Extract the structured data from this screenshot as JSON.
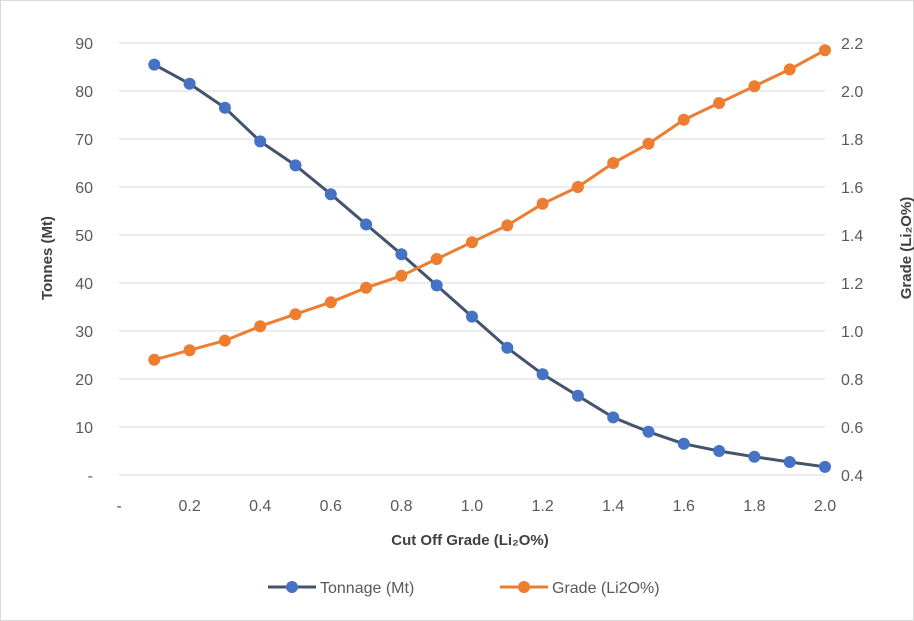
{
  "chart_data": {
    "type": "line",
    "xlabel": "Cut Off Grade (Li₂O%)",
    "ylabel_left": "Tonnes (Mt)",
    "ylabel_right": "Grade (Li₂O%)",
    "x_ticks": [
      "-",
      "0.2",
      "0.4",
      "0.6",
      "0.8",
      "1.0",
      "1.2",
      "1.4",
      "1.6",
      "1.8",
      "2.0"
    ],
    "y_left_ticks": [
      "-",
      "10",
      "20",
      "30",
      "40",
      "50",
      "60",
      "70",
      "80",
      "90"
    ],
    "y_right_ticks": [
      "0.4",
      "0.6",
      "0.8",
      "1.0",
      "1.2",
      "1.4",
      "1.6",
      "1.8",
      "2.0",
      "2.2"
    ],
    "xlim": [
      0,
      2.0
    ],
    "ylim_left": [
      0,
      90
    ],
    "ylim_right": [
      0.4,
      2.2
    ],
    "grid": "horizontal",
    "legend_position": "bottom",
    "x": [
      0.1,
      0.2,
      0.3,
      0.4,
      0.5,
      0.6,
      0.7,
      0.8,
      0.9,
      1.0,
      1.1,
      1.2,
      1.3,
      1.4,
      1.5,
      1.6,
      1.7,
      1.8,
      1.9,
      2.0
    ],
    "series": [
      {
        "name": "Tonnage (Mt)",
        "axis": "left",
        "color": "#44546a",
        "marker_color": "#4472c4",
        "values": [
          85.5,
          81.5,
          76.5,
          69.5,
          64.5,
          58.5,
          52.2,
          46.0,
          39.5,
          33.0,
          26.5,
          21.0,
          16.5,
          12.0,
          9.0,
          6.5,
          5.0,
          3.8,
          2.7,
          1.7
        ]
      },
      {
        "name": "Grade (Li2O%)",
        "axis": "right",
        "color": "#ed7d31",
        "marker_color": "#ed7d31",
        "values": [
          0.88,
          0.92,
          0.96,
          1.02,
          1.07,
          1.12,
          1.18,
          1.23,
          1.3,
          1.37,
          1.44,
          1.53,
          1.6,
          1.7,
          1.78,
          1.88,
          1.95,
          2.02,
          2.09,
          2.17
        ]
      }
    ]
  }
}
